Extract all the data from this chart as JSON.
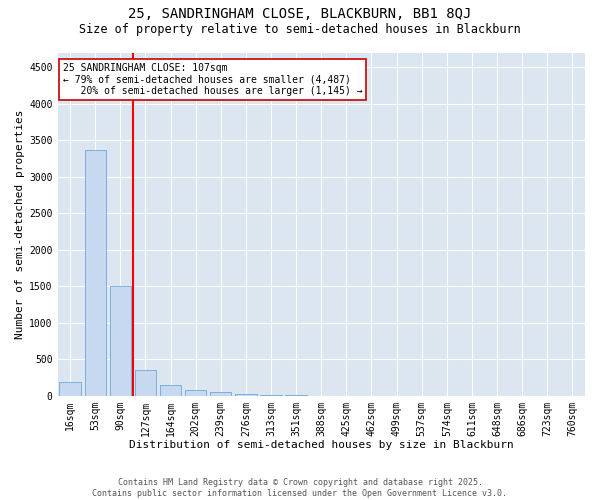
{
  "title": "25, SANDRINGHAM CLOSE, BLACKBURN, BB1 8QJ",
  "subtitle": "Size of property relative to semi-detached houses in Blackburn",
  "xlabel": "Distribution of semi-detached houses by size in Blackburn",
  "ylabel": "Number of semi-detached properties",
  "categories": [
    "16sqm",
    "53sqm",
    "90sqm",
    "127sqm",
    "164sqm",
    "202sqm",
    "239sqm",
    "276sqm",
    "313sqm",
    "351sqm",
    "388sqm",
    "425sqm",
    "462sqm",
    "499sqm",
    "537sqm",
    "574sqm",
    "611sqm",
    "648sqm",
    "686sqm",
    "723sqm",
    "760sqm"
  ],
  "values": [
    185,
    3370,
    1500,
    355,
    140,
    85,
    55,
    30,
    5,
    5,
    0,
    0,
    0,
    0,
    0,
    0,
    0,
    0,
    0,
    0,
    0
  ],
  "bar_color": "#c6d9f0",
  "bar_edge_color": "#5b9bd5",
  "red_line_label": "25 SANDRINGHAM CLOSE: 107sqm",
  "smaller_pct": "79%",
  "smaller_count": "4,487",
  "larger_pct": "20%",
  "larger_count": "1,145",
  "ylim": [
    0,
    4700
  ],
  "yticks": [
    0,
    500,
    1000,
    1500,
    2000,
    2500,
    3000,
    3500,
    4000,
    4500
  ],
  "annotation_box_color": "#ffffff",
  "annotation_box_edge": "#cc0000",
  "footer": "Contains HM Land Registry data © Crown copyright and database right 2025.\nContains public sector information licensed under the Open Government Licence v3.0.",
  "plot_bg_color": "#dce6f1",
  "title_fontsize": 10,
  "subtitle_fontsize": 8.5,
  "axis_label_fontsize": 8,
  "tick_fontsize": 7,
  "footer_fontsize": 6,
  "ann_fontsize": 7
}
